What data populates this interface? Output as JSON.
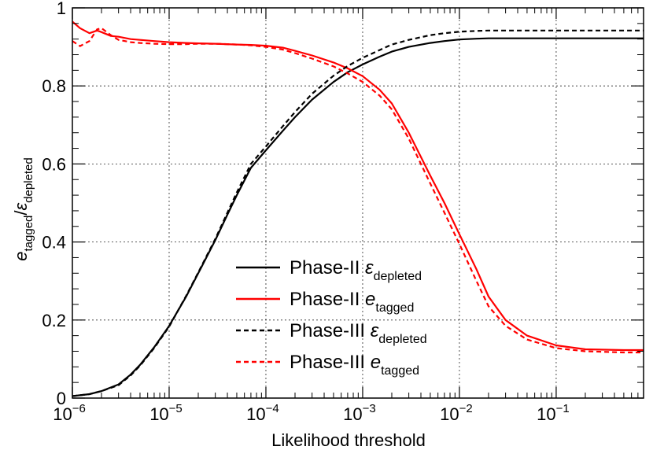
{
  "chart_data": {
    "type": "line",
    "title": "",
    "xlabel": "Likelihood threshold",
    "ylabel": {
      "e": "e",
      "e_sub": "tagged",
      "slash": "/",
      "eps": "ε",
      "eps_sub": "depleted"
    },
    "xscale": "log",
    "xlim": [
      1e-06,
      0.8
    ],
    "ylim": [
      0,
      1
    ],
    "grid": true,
    "legend_position": "bottom-center",
    "xticks": [
      {
        "value": 1e-06,
        "base": "10",
        "exp": "−6"
      },
      {
        "value": 1e-05,
        "base": "10",
        "exp": "−5"
      },
      {
        "value": 0.0001,
        "base": "10",
        "exp": "−4"
      },
      {
        "value": 0.001,
        "base": "10",
        "exp": "−3"
      },
      {
        "value": 0.01,
        "base": "10",
        "exp": "−2"
      },
      {
        "value": 0.1,
        "base": "10",
        "exp": "−1"
      }
    ],
    "yticks": [
      {
        "value": 0,
        "label": "0"
      },
      {
        "value": 0.2,
        "label": "0.2"
      },
      {
        "value": 0.4,
        "label": "0.4"
      },
      {
        "value": 0.6,
        "label": "0.6"
      },
      {
        "value": 0.8,
        "label": "0.8"
      },
      {
        "value": 1,
        "label": "1"
      }
    ],
    "series": [
      {
        "name": "Phase-II ε_depleted",
        "legend_main": "Phase-II ε",
        "legend_sub": "depleted",
        "color": "#000000",
        "dash": "solid",
        "x": [
          1e-06,
          1.5e-06,
          2e-06,
          3e-06,
          4e-06,
          5e-06,
          7e-06,
          1e-05,
          1.5e-05,
          2e-05,
          3e-05,
          4e-05,
          5e-05,
          7e-05,
          0.0001,
          0.00015,
          0.0002,
          0.0003,
          0.0005,
          0.0007,
          0.001,
          0.0015,
          0.002,
          0.003,
          0.005,
          0.007,
          0.01,
          0.015,
          0.02,
          0.03,
          0.05,
          0.1,
          0.2,
          0.5,
          0.8
        ],
        "y": [
          0.005,
          0.01,
          0.018,
          0.035,
          0.06,
          0.085,
          0.13,
          0.185,
          0.26,
          0.32,
          0.405,
          0.47,
          0.52,
          0.59,
          0.635,
          0.685,
          0.72,
          0.765,
          0.81,
          0.835,
          0.855,
          0.875,
          0.888,
          0.9,
          0.91,
          0.915,
          0.919,
          0.921,
          0.922,
          0.922,
          0.922,
          0.922,
          0.922,
          0.922,
          0.922
        ]
      },
      {
        "name": "Phase-II e_tagged",
        "legend_main": "Phase-II e",
        "legend_sub": "tagged",
        "color": "#ff0000",
        "dash": "solid",
        "x": [
          1e-06,
          1.2e-06,
          1.5e-06,
          1.8e-06,
          2e-06,
          2.5e-06,
          3e-06,
          4e-06,
          5e-06,
          7e-06,
          1e-05,
          1.5e-05,
          2e-05,
          3e-05,
          5e-05,
          7e-05,
          0.0001,
          0.00015,
          0.0002,
          0.0003,
          0.0005,
          0.0007,
          0.001,
          0.0015,
          0.002,
          0.003,
          0.005,
          0.007,
          0.01,
          0.015,
          0.02,
          0.03,
          0.05,
          0.1,
          0.2,
          0.5,
          0.8
        ],
        "y": [
          0.965,
          0.948,
          0.935,
          0.942,
          0.938,
          0.928,
          0.926,
          0.92,
          0.918,
          0.915,
          0.912,
          0.91,
          0.909,
          0.908,
          0.906,
          0.905,
          0.903,
          0.898,
          0.89,
          0.878,
          0.86,
          0.845,
          0.825,
          0.79,
          0.755,
          0.68,
          0.57,
          0.5,
          0.42,
          0.33,
          0.26,
          0.2,
          0.16,
          0.135,
          0.125,
          0.123,
          0.123
        ]
      },
      {
        "name": "Phase-III ε_depleted",
        "legend_main": "Phase-III ε",
        "legend_sub": "depleted",
        "color": "#000000",
        "dash": "dashed",
        "x": [
          1e-06,
          1.5e-06,
          2e-06,
          3e-06,
          4e-06,
          5e-06,
          7e-06,
          1e-05,
          1.5e-05,
          2e-05,
          3e-05,
          4e-05,
          5e-05,
          7e-05,
          0.0001,
          0.00015,
          0.0002,
          0.0003,
          0.0005,
          0.0007,
          0.001,
          0.0015,
          0.002,
          0.003,
          0.005,
          0.007,
          0.01,
          0.015,
          0.02,
          0.03,
          0.05,
          0.1,
          0.2,
          0.5,
          0.8
        ],
        "y": [
          0.005,
          0.01,
          0.018,
          0.033,
          0.058,
          0.083,
          0.128,
          0.183,
          0.262,
          0.322,
          0.408,
          0.475,
          0.527,
          0.6,
          0.645,
          0.697,
          0.733,
          0.78,
          0.826,
          0.851,
          0.872,
          0.892,
          0.906,
          0.918,
          0.93,
          0.935,
          0.939,
          0.941,
          0.942,
          0.942,
          0.942,
          0.942,
          0.942,
          0.942,
          0.942
        ]
      },
      {
        "name": "Phase-III e_tagged",
        "legend_main": "Phase-III e",
        "legend_sub": "tagged",
        "color": "#ff0000",
        "dash": "dashed",
        "x": [
          1e-06,
          1.2e-06,
          1.5e-06,
          1.8e-06,
          2e-06,
          2.5e-06,
          3e-06,
          4e-06,
          5e-06,
          7e-06,
          1e-05,
          1.5e-05,
          2e-05,
          3e-05,
          5e-05,
          7e-05,
          0.0001,
          0.00015,
          0.0002,
          0.0003,
          0.0005,
          0.0007,
          0.001,
          0.0015,
          0.002,
          0.003,
          0.005,
          0.007,
          0.01,
          0.015,
          0.02,
          0.03,
          0.05,
          0.1,
          0.2,
          0.5,
          0.8
        ],
        "y": [
          0.915,
          0.902,
          0.915,
          0.945,
          0.948,
          0.93,
          0.918,
          0.912,
          0.91,
          0.908,
          0.907,
          0.907,
          0.908,
          0.908,
          0.906,
          0.904,
          0.9,
          0.893,
          0.884,
          0.87,
          0.85,
          0.832,
          0.81,
          0.775,
          0.74,
          0.665,
          0.55,
          0.475,
          0.395,
          0.3,
          0.235,
          0.185,
          0.15,
          0.128,
          0.12,
          0.117,
          0.117
        ]
      }
    ]
  }
}
